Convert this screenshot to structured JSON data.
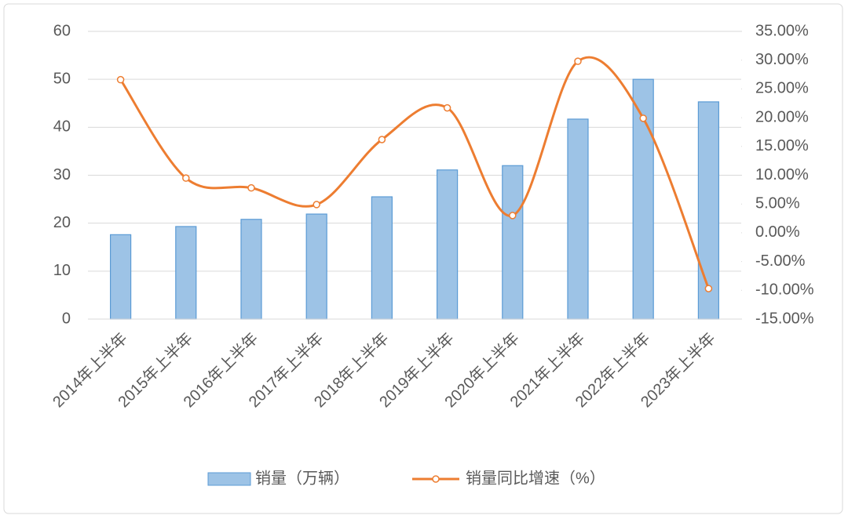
{
  "chart_data": {
    "type": "bar-line",
    "categories": [
      "2014年上半年",
      "2015年上半年",
      "2016年上半年",
      "2017年上半年",
      "2018年上半年",
      "2019年上半年",
      "2020年上半年",
      "2021年上半年",
      "2022年上半年",
      "2023年上半年"
    ],
    "series": [
      {
        "name": "销量（万辆）",
        "type": "bar",
        "color": "#9dc3e6",
        "values": [
          17.6,
          19.3,
          20.8,
          21.9,
          25.5,
          31.1,
          32.0,
          41.7,
          50.0,
          45.3
        ]
      },
      {
        "name": "销量同比增速（%）",
        "type": "line",
        "axis": "y2",
        "color": "#ed7d31",
        "smooth": true,
        "values": [
          26.6,
          9.5,
          7.8,
          4.9,
          16.2,
          21.7,
          3.0,
          29.8,
          19.9,
          -9.7
        ]
      }
    ],
    "ylim": [
      0,
      60
    ],
    "yticks": [
      0,
      10,
      20,
      30,
      40,
      50,
      60
    ],
    "y2lim": [
      -15,
      35
    ],
    "y2ticks": [
      {
        "value": -15,
        "label": "-15.00%"
      },
      {
        "value": -10,
        "label": "-10.00%"
      },
      {
        "value": -5,
        "label": "-5.00%"
      },
      {
        "value": 0,
        "label": "0.00%"
      },
      {
        "value": 5,
        "label": "5.00%"
      },
      {
        "value": 10,
        "label": "10.00%"
      },
      {
        "value": 15,
        "label": "15.00%"
      },
      {
        "value": 20,
        "label": "20.00%"
      },
      {
        "value": 25,
        "label": "25.00%"
      },
      {
        "value": 30,
        "label": "30.00%"
      },
      {
        "value": 35,
        "label": "35.00%"
      }
    ],
    "grid": true,
    "legend": "bottom"
  }
}
